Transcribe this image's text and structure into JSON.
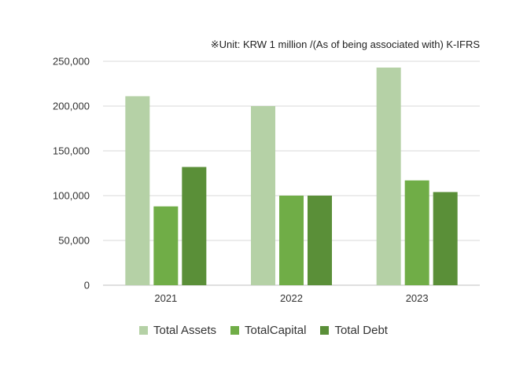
{
  "unit_note": "※Unit: KRW 1 million /(As of being associated with) K-IFRS",
  "chart_data": {
    "type": "bar",
    "categories": [
      "2021",
      "2022",
      "2023"
    ],
    "series": [
      {
        "name": "Total Assets",
        "values": [
          211000,
          200000,
          243000
        ],
        "color": "#b5d1a6"
      },
      {
        "name": "TotalCapital",
        "values": [
          88000,
          100000,
          117000
        ],
        "color": "#70ad47"
      },
      {
        "name": "Total Debt",
        "values": [
          132000,
          100000,
          104000
        ],
        "color": "#5a8f38"
      }
    ],
    "y_ticks": [
      "0",
      "50,000",
      "100,000",
      "150,000",
      "200,000",
      "250,000"
    ],
    "ylim": [
      0,
      250000
    ],
    "grid": true,
    "legend_position": "bottom",
    "title": "",
    "xlabel": "",
    "ylabel": ""
  }
}
